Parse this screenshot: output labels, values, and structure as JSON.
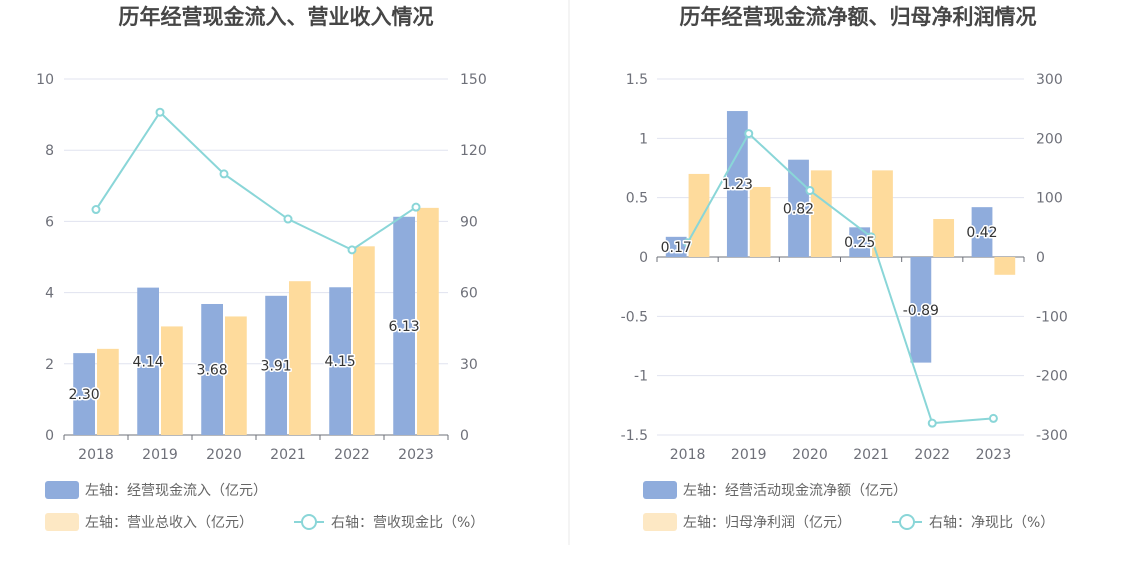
{
  "colors": {
    "bar_blue": "#8facdc",
    "bar_orange": "#fedb9c",
    "line": "#8ad6d8",
    "legend_orange": "#fde8c4",
    "grid": "#e0e3ef",
    "divider": "#e8e8e8"
  },
  "chart_data": [
    {
      "type": "bar",
      "title": "历年经营现金流入、营业收入情况",
      "categories": [
        "2018",
        "2019",
        "2020",
        "2021",
        "2022",
        "2023"
      ],
      "y_left": {
        "min": 0,
        "max": 10,
        "ticks": [
          "0",
          "2",
          "4",
          "6",
          "8",
          "10"
        ]
      },
      "y_right": {
        "min": 0,
        "max": 150,
        "ticks": [
          "0",
          "30",
          "60",
          "90",
          "120",
          "150"
        ]
      },
      "series": [
        {
          "name": "左轴：经营现金流入（亿元）",
          "type": "bar",
          "axis": "left",
          "values": [
            2.3,
            4.14,
            3.68,
            3.91,
            4.15,
            6.13
          ],
          "labels": [
            "2.30",
            "4.14",
            "3.68",
            "3.91",
            "4.15",
            "6.13"
          ]
        },
        {
          "name": "左轴：营业总收入（亿元）",
          "type": "bar",
          "axis": "left",
          "values": [
            2.42,
            3.05,
            3.33,
            4.32,
            5.3,
            6.38
          ]
        },
        {
          "name": "右轴：营收现金比（%）",
          "type": "line",
          "axis": "right",
          "values": [
            95,
            136,
            110,
            91,
            78,
            96
          ]
        }
      ],
      "legend_position": "bottom-left"
    },
    {
      "type": "bar",
      "title": "历年经营现金流净额、归母净利润情况",
      "categories": [
        "2018",
        "2019",
        "2020",
        "2021",
        "2022",
        "2023"
      ],
      "y_left": {
        "min": -1.5,
        "max": 1.5,
        "ticks": [
          "-1.5",
          "-1",
          "-0.5",
          "0",
          "0.5",
          "1",
          "1.5"
        ]
      },
      "y_right": {
        "min": -300,
        "max": 300,
        "ticks": [
          "-300",
          "-200",
          "-100",
          "0",
          "100",
          "200",
          "300"
        ]
      },
      "series": [
        {
          "name": "左轴：经营活动现金流净额（亿元）",
          "type": "bar",
          "axis": "left",
          "values": [
            0.17,
            1.23,
            0.82,
            0.25,
            -0.89,
            0.42
          ],
          "labels": [
            "0.17",
            "1.23",
            "0.82",
            "0.25",
            "-0.89",
            "0.42"
          ]
        },
        {
          "name": "左轴：归母净利润（亿元）",
          "type": "bar",
          "axis": "left",
          "values": [
            0.7,
            0.59,
            0.73,
            0.73,
            0.32,
            -0.15
          ]
        },
        {
          "name": "右轴：净现比（%）",
          "type": "line",
          "axis": "right",
          "values": [
            24,
            208,
            112,
            34,
            -280,
            -272
          ]
        }
      ],
      "legend_position": "bottom-left"
    }
  ]
}
